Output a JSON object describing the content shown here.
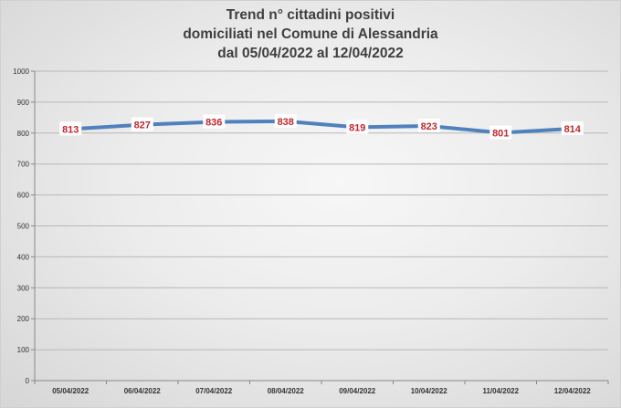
{
  "chart_data": {
    "type": "line",
    "title_lines": [
      "Trend n° cittadini positivi",
      "domiciliati nel Comune di Alessandria",
      "dal 05/04/2022 al 12/04/2022"
    ],
    "categories": [
      "05/04/2022",
      "06/04/2022",
      "07/04/2022",
      "08/04/2022",
      "09/04/2022",
      "10/04/2022",
      "11/04/2022",
      "12/04/2022"
    ],
    "series": [
      {
        "values": [
          813,
          827,
          836,
          838,
          819,
          823,
          801,
          814
        ]
      }
    ],
    "ylim": [
      0,
      1000
    ],
    "yticks": [
      0,
      100,
      200,
      300,
      400,
      500,
      600,
      700,
      800,
      900,
      1000
    ],
    "grid": true,
    "legend": "none",
    "colors": {
      "line": "#4f81bd",
      "label": "#c0282d"
    }
  }
}
